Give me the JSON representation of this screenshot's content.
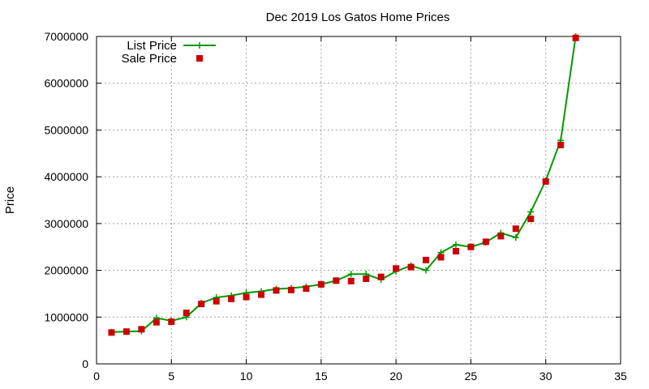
{
  "chart_data": {
    "type": "line",
    "title": "Dec 2019 Los Gatos Home Prices",
    "xlabel": "",
    "ylabel": "Price",
    "xlim": [
      0,
      35
    ],
    "ylim": [
      0,
      7000000
    ],
    "xticks": [
      0,
      5,
      10,
      15,
      20,
      25,
      30,
      35
    ],
    "yticks": [
      0,
      1000000,
      2000000,
      3000000,
      4000000,
      5000000,
      6000000,
      7000000
    ],
    "grid": true,
    "legend_position": "top-left",
    "x": [
      1,
      2,
      3,
      4,
      5,
      6,
      7,
      8,
      9,
      10,
      11,
      12,
      13,
      14,
      15,
      16,
      17,
      18,
      19,
      20,
      21,
      22,
      23,
      24,
      25,
      26,
      27,
      28,
      29,
      30,
      31,
      32
    ],
    "series": [
      {
        "name": "List Price",
        "style": "line-with-plus",
        "color": "#009900",
        "values": [
          680000,
          690000,
          700000,
          980000,
          920000,
          1000000,
          1300000,
          1420000,
          1460000,
          1520000,
          1550000,
          1600000,
          1620000,
          1650000,
          1700000,
          1780000,
          1920000,
          1920000,
          1800000,
          1980000,
          2100000,
          2000000,
          2380000,
          2550000,
          2500000,
          2600000,
          2800000,
          2700000,
          3250000,
          3920000,
          4780000,
          7000000
        ]
      },
      {
        "name": "Sale Price",
        "style": "square-marker",
        "color": "#cc0000",
        "values": [
          670000,
          690000,
          740000,
          890000,
          900000,
          1090000,
          1280000,
          1340000,
          1390000,
          1430000,
          1480000,
          1570000,
          1580000,
          1610000,
          1700000,
          1780000,
          1770000,
          1820000,
          1860000,
          2040000,
          2070000,
          2220000,
          2280000,
          2410000,
          2500000,
          2610000,
          2730000,
          2890000,
          3100000,
          3900000,
          4680000,
          6970000
        ]
      }
    ]
  }
}
